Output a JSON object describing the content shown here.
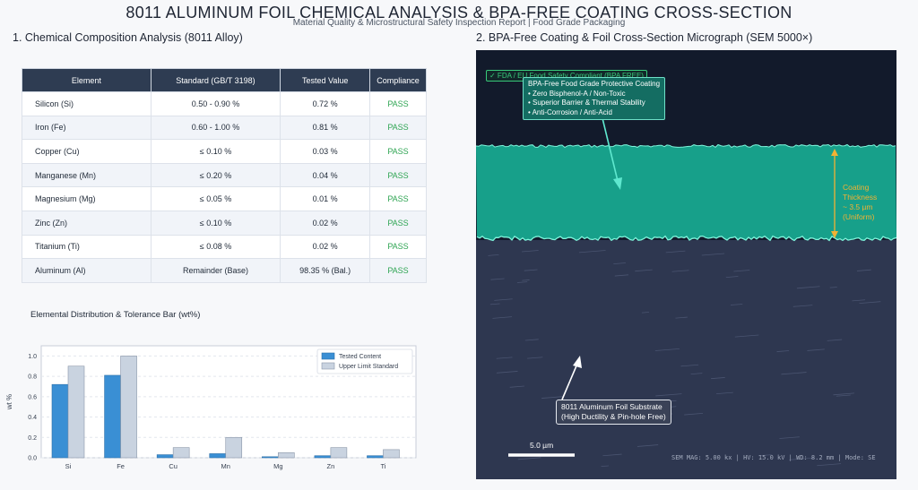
{
  "header": {
    "title": "8011 ALUMINUM FOIL CHEMICAL ANALYSIS & BPA-FREE COATING CROSS-SECTION",
    "subtitle": "Material Quality & Microstructural Safety Inspection Report | Food Grade Packaging"
  },
  "section1": {
    "title": "1. Chemical Composition Analysis (8011 Alloy)"
  },
  "section2": {
    "title": "2. BPA-Free Coating & Foil Cross-Section Micrograph (SEM 5000×)"
  },
  "table": {
    "headers": [
      "Element",
      "Standard (GB/T 3198)",
      "Tested Value",
      "Compliance"
    ],
    "rows": [
      [
        "Silicon (Si)",
        "0.50 - 0.90 %",
        "0.72 %",
        "PASS"
      ],
      [
        "Iron (Fe)",
        "0.60 - 1.00 %",
        "0.81 %",
        "PASS"
      ],
      [
        "Copper (Cu)",
        "≤ 0.10 %",
        "0.03 %",
        "PASS"
      ],
      [
        "Manganese (Mn)",
        "≤ 0.20 %",
        "0.04 %",
        "PASS"
      ],
      [
        "Magnesium (Mg)",
        "≤ 0.05 %",
        "0.01 %",
        "PASS"
      ],
      [
        "Zinc (Zn)",
        "≤ 0.10 %",
        "0.02 %",
        "PASS"
      ],
      [
        "Titanium (Ti)",
        "≤ 0.08 %",
        "0.02 %",
        "PASS"
      ],
      [
        "Aluminum (Al)",
        "Remainder (Base)",
        "98.35 % (Bal.)",
        "PASS"
      ]
    ]
  },
  "chart_data": {
    "type": "bar",
    "title": "Elemental Distribution & Tolerance Bar (wt%)",
    "xlabel": "",
    "ylabel": "wt %",
    "categories": [
      "Si",
      "Fe",
      "Cu",
      "Mn",
      "Mg",
      "Zn",
      "Ti"
    ],
    "series": [
      {
        "name": "Tested Content",
        "values": [
          0.72,
          0.81,
          0.03,
          0.04,
          0.01,
          0.02,
          0.02
        ],
        "color": "#3a8fd4"
      },
      {
        "name": "Upper Limit Standard",
        "values": [
          0.9,
          1.0,
          0.1,
          0.2,
          0.05,
          0.1,
          0.08
        ],
        "color": "#c9d3e0"
      }
    ],
    "ylim": [
      0,
      1.1
    ],
    "yticks": [
      "0.0",
      "0.2",
      "0.4",
      "0.6",
      "0.8",
      "1.0"
    ],
    "grid": true,
    "legend": "top-right"
  },
  "micrograph": {
    "badge": "✓ FDA / EU Food Safety Compliant (BPA FREE)",
    "coating_label": [
      "BPA-Free Food Grade Protective Coating",
      "• Zero Bisphenol-A / Non-Toxic",
      "• Superior Barrier & Thermal Stability",
      "• Anti-Corrosion / Anti-Acid"
    ],
    "thickness_label": [
      "Coating Thickness",
      "~ 3.5 µm (Uniform)"
    ],
    "substrate_label": [
      "8011 Aluminum Foil Substrate",
      "(High Ductility & Pin-hole Free)"
    ],
    "scale_bar": "5.0 µm",
    "meta": "SEM MAG: 5.00 kx | HV: 15.0 kV | WD: 8.2 mm | Mode: SE",
    "colors": {
      "background": "#121a2b",
      "coating": "#17a08a",
      "coating_edge": "#7ff5dc",
      "substrate": "#2e3750",
      "thickness_arrow": "#f2b233"
    }
  }
}
